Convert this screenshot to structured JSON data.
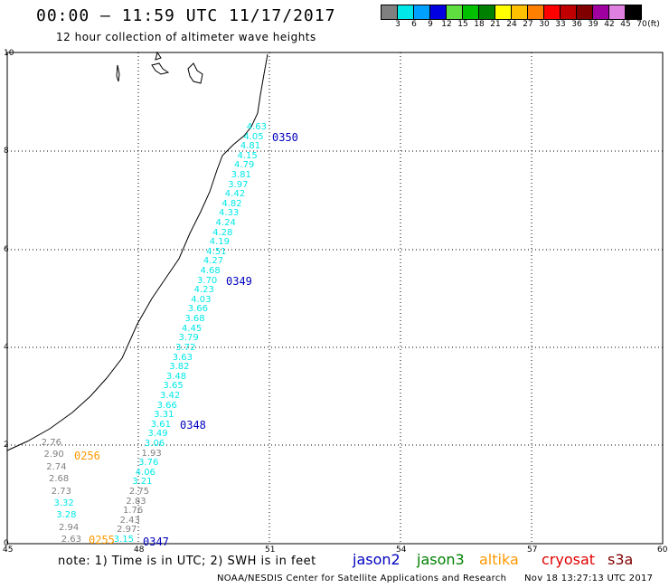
{
  "header": {
    "title": "00:00 – 11:59 UTC 11/17/2017",
    "subtitle": "12 hour collection of altimeter wave heights"
  },
  "legend": {
    "unit_label": "(ft)",
    "items": [
      {
        "label": "3",
        "color": "#808080"
      },
      {
        "label": "6",
        "color": "#00e8e8"
      },
      {
        "label": "9",
        "color": "#00a0ff"
      },
      {
        "label": "12",
        "color": "#0000e0"
      },
      {
        "label": "15",
        "color": "#60e040"
      },
      {
        "label": "18",
        "color": "#00c000"
      },
      {
        "label": "21",
        "color": "#008000"
      },
      {
        "label": "24",
        "color": "#ffff00"
      },
      {
        "label": "27",
        "color": "#ffc000"
      },
      {
        "label": "30",
        "color": "#ff8000"
      },
      {
        "label": "33",
        "color": "#ff0000"
      },
      {
        "label": "36",
        "color": "#c00000"
      },
      {
        "label": "39",
        "color": "#800000"
      },
      {
        "label": "42",
        "color": "#a000a0"
      },
      {
        "label": "45",
        "color": "#e080e0"
      },
      {
        "label": "70",
        "color": "#000000"
      }
    ]
  },
  "map": {
    "y_ticks": [
      "0",
      "2",
      "4",
      "6",
      "8",
      "10"
    ],
    "x_ticks": [
      "45",
      "48",
      "51",
      "54",
      "57",
      "60"
    ],
    "observations": [
      {
        "text": "4.63",
        "color": "#00e8e8"
      },
      {
        "text": "4.05",
        "color": "#00e8e8"
      },
      {
        "text": "4.81",
        "color": "#00e8e8"
      },
      {
        "text": "4.15",
        "color": "#00e8e8"
      },
      {
        "text": "4.79",
        "color": "#00e8e8"
      },
      {
        "text": "3.81",
        "color": "#00e8e8"
      },
      {
        "text": "3.97",
        "color": "#00e8e8"
      },
      {
        "text": "4.42",
        "color": "#00e8e8"
      },
      {
        "text": "4.82",
        "color": "#00e8e8"
      },
      {
        "text": "4.33",
        "color": "#00e8e8"
      },
      {
        "text": "4.24",
        "color": "#00e8e8"
      },
      {
        "text": "4.28",
        "color": "#00e8e8"
      },
      {
        "text": "4.19",
        "color": "#00e8e8"
      },
      {
        "text": "4.51",
        "color": "#00e8e8"
      },
      {
        "text": "4.27",
        "color": "#00e8e8"
      },
      {
        "text": "4.68",
        "color": "#00e8e8"
      },
      {
        "text": "3.70",
        "color": "#00e8e8"
      },
      {
        "text": "4.23",
        "color": "#00e8e8"
      },
      {
        "text": "4.03",
        "color": "#00e8e8"
      },
      {
        "text": "3.66",
        "color": "#00e8e8"
      },
      {
        "text": "3.68",
        "color": "#00e8e8"
      },
      {
        "text": "4.45",
        "color": "#00e8e8"
      },
      {
        "text": "3.79",
        "color": "#00e8e8"
      },
      {
        "text": "3.72",
        "color": "#00e8e8"
      },
      {
        "text": "3.63",
        "color": "#00e8e8"
      },
      {
        "text": "3.82",
        "color": "#00e8e8"
      },
      {
        "text": "3.48",
        "color": "#00e8e8"
      },
      {
        "text": "3.65",
        "color": "#00e8e8"
      },
      {
        "text": "3.42",
        "color": "#00e8e8"
      },
      {
        "text": "3.66",
        "color": "#00e8e8"
      },
      {
        "text": "3.31",
        "color": "#00e8e8"
      },
      {
        "text": "3.61",
        "color": "#00e8e8"
      },
      {
        "text": "3.49",
        "color": "#00e8e8"
      },
      {
        "text": "3.06",
        "color": "#00e8e8"
      },
      {
        "text": "1.93",
        "color": "#808080"
      },
      {
        "text": "3.76",
        "color": "#00e8e8"
      },
      {
        "text": "4.06",
        "color": "#00e8e8"
      },
      {
        "text": "3.21",
        "color": "#00e8e8"
      },
      {
        "text": "2.75",
        "color": "#808080"
      },
      {
        "text": "2.83",
        "color": "#808080"
      },
      {
        "text": "1.76",
        "color": "#808080"
      },
      {
        "text": "2.43",
        "color": "#808080"
      },
      {
        "text": "2.97",
        "color": "#808080"
      },
      {
        "text": "3.15",
        "color": "#00e8e8"
      },
      {
        "text": "2.76",
        "color": "#808080"
      },
      {
        "text": "2.90",
        "color": "#808080"
      },
      {
        "text": "2.74",
        "color": "#808080"
      },
      {
        "text": "2.68",
        "color": "#808080"
      },
      {
        "text": "2.73",
        "color": "#808080"
      },
      {
        "text": "3.32",
        "color": "#00e8e8"
      },
      {
        "text": "3.28",
        "color": "#00e8e8"
      },
      {
        "text": "2.94",
        "color": "#808080"
      },
      {
        "text": "2.63",
        "color": "#808080"
      }
    ],
    "pass_labels": [
      {
        "text": "0350",
        "color": "#0000c0"
      },
      {
        "text": "0349",
        "color": "#0000c0"
      },
      {
        "text": "0348",
        "color": "#0000c0"
      },
      {
        "text": "0347",
        "color": "#0000c0"
      },
      {
        "text": "0256",
        "color": "#ff9900"
      },
      {
        "text": "0255",
        "color": "#ff9900"
      }
    ]
  },
  "footer": {
    "note": "note: 1) Time is in UTC; 2) SWH is in feet",
    "satellites": [
      {
        "name": "jason2",
        "color": "#0000c0"
      },
      {
        "name": "jason3",
        "color": "#008000"
      },
      {
        "name": "altika",
        "color": "#ff9900"
      },
      {
        "name": "cryosat",
        "color": "#e00000"
      },
      {
        "name": "s3a",
        "color": "#800000"
      }
    ],
    "credit": "NOAA/NESDIS Center for Satellite Applications and Research",
    "timestamp": "Nov 18 13:27:13 UTC 2017"
  }
}
